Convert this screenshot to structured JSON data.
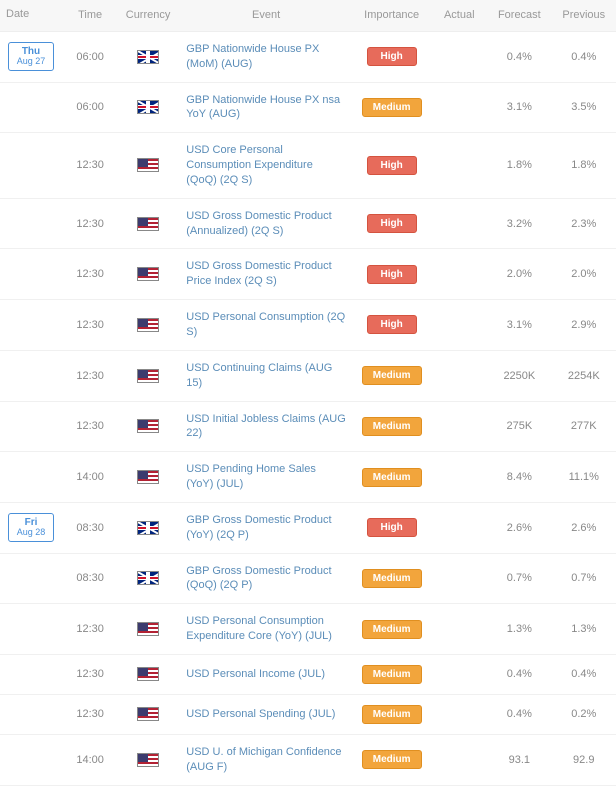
{
  "columns": {
    "date": "Date",
    "time": "Time",
    "currency": "Currency",
    "event": "Event",
    "importance": "Importance",
    "actual": "Actual",
    "forecast": "Forecast",
    "previous": "Previous"
  },
  "importance_styles": {
    "High": {
      "bg": "#e76b5b",
      "border": "#d4533f"
    },
    "Medium": {
      "bg": "#f2a53c",
      "border": "#e08f20"
    }
  },
  "flags": {
    "GBP": "flag-gbp",
    "USD": "flag-usd"
  },
  "rows": [
    {
      "date": {
        "dow": "Thu",
        "md": "Aug 27"
      },
      "time": "06:00",
      "currency": "GBP",
      "event": "GBP Nationwide House PX (MoM) (AUG)",
      "importance": "High",
      "actual": "",
      "forecast": "0.4%",
      "previous": "0.4%"
    },
    {
      "date": null,
      "time": "06:00",
      "currency": "GBP",
      "event": "GBP Nationwide House PX nsa YoY (AUG)",
      "importance": "Medium",
      "actual": "",
      "forecast": "3.1%",
      "previous": "3.5%"
    },
    {
      "date": null,
      "time": "12:30",
      "currency": "USD",
      "event": "USD Core Personal Consumption Expenditure (QoQ) (2Q S)",
      "importance": "High",
      "actual": "",
      "forecast": "1.8%",
      "previous": "1.8%"
    },
    {
      "date": null,
      "time": "12:30",
      "currency": "USD",
      "event": "USD Gross Domestic Product (Annualized) (2Q S)",
      "importance": "High",
      "actual": "",
      "forecast": "3.2%",
      "previous": "2.3%"
    },
    {
      "date": null,
      "time": "12:30",
      "currency": "USD",
      "event": "USD Gross Domestic Product Price Index (2Q S)",
      "importance": "High",
      "actual": "",
      "forecast": "2.0%",
      "previous": "2.0%"
    },
    {
      "date": null,
      "time": "12:30",
      "currency": "USD",
      "event": "USD Personal Consumption (2Q S)",
      "importance": "High",
      "actual": "",
      "forecast": "3.1%",
      "previous": "2.9%"
    },
    {
      "date": null,
      "time": "12:30",
      "currency": "USD",
      "event": "USD Continuing Claims (AUG 15)",
      "importance": "Medium",
      "actual": "",
      "forecast": "2250K",
      "previous": "2254K"
    },
    {
      "date": null,
      "time": "12:30",
      "currency": "USD",
      "event": "USD Initial Jobless Claims (AUG 22)",
      "importance": "Medium",
      "actual": "",
      "forecast": "275K",
      "previous": "277K"
    },
    {
      "date": null,
      "time": "14:00",
      "currency": "USD",
      "event": "USD Pending Home Sales (YoY) (JUL)",
      "importance": "Medium",
      "actual": "",
      "forecast": "8.4%",
      "previous": "11.1%"
    },
    {
      "date": {
        "dow": "Fri",
        "md": "Aug 28"
      },
      "time": "08:30",
      "currency": "GBP",
      "event": "GBP Gross Domestic Product (YoY) (2Q P)",
      "importance": "High",
      "actual": "",
      "forecast": "2.6%",
      "previous": "2.6%"
    },
    {
      "date": null,
      "time": "08:30",
      "currency": "GBP",
      "event": "GBP Gross Domestic Product (QoQ) (2Q P)",
      "importance": "Medium",
      "actual": "",
      "forecast": "0.7%",
      "previous": "0.7%"
    },
    {
      "date": null,
      "time": "12:30",
      "currency": "USD",
      "event": "USD Personal Consumption Expenditure Core (YoY) (JUL)",
      "importance": "Medium",
      "actual": "",
      "forecast": "1.3%",
      "previous": "1.3%"
    },
    {
      "date": null,
      "time": "12:30",
      "currency": "USD",
      "event": "USD Personal Income (JUL)",
      "importance": "Medium",
      "actual": "",
      "forecast": "0.4%",
      "previous": "0.4%"
    },
    {
      "date": null,
      "time": "12:30",
      "currency": "USD",
      "event": "USD Personal Spending (JUL)",
      "importance": "Medium",
      "actual": "",
      "forecast": "0.4%",
      "previous": "0.2%"
    },
    {
      "date": null,
      "time": "14:00",
      "currency": "USD",
      "event": "USD U. of Michigan Confidence (AUG F)",
      "importance": "Medium",
      "actual": "",
      "forecast": "93.1",
      "previous": "92.9"
    }
  ]
}
